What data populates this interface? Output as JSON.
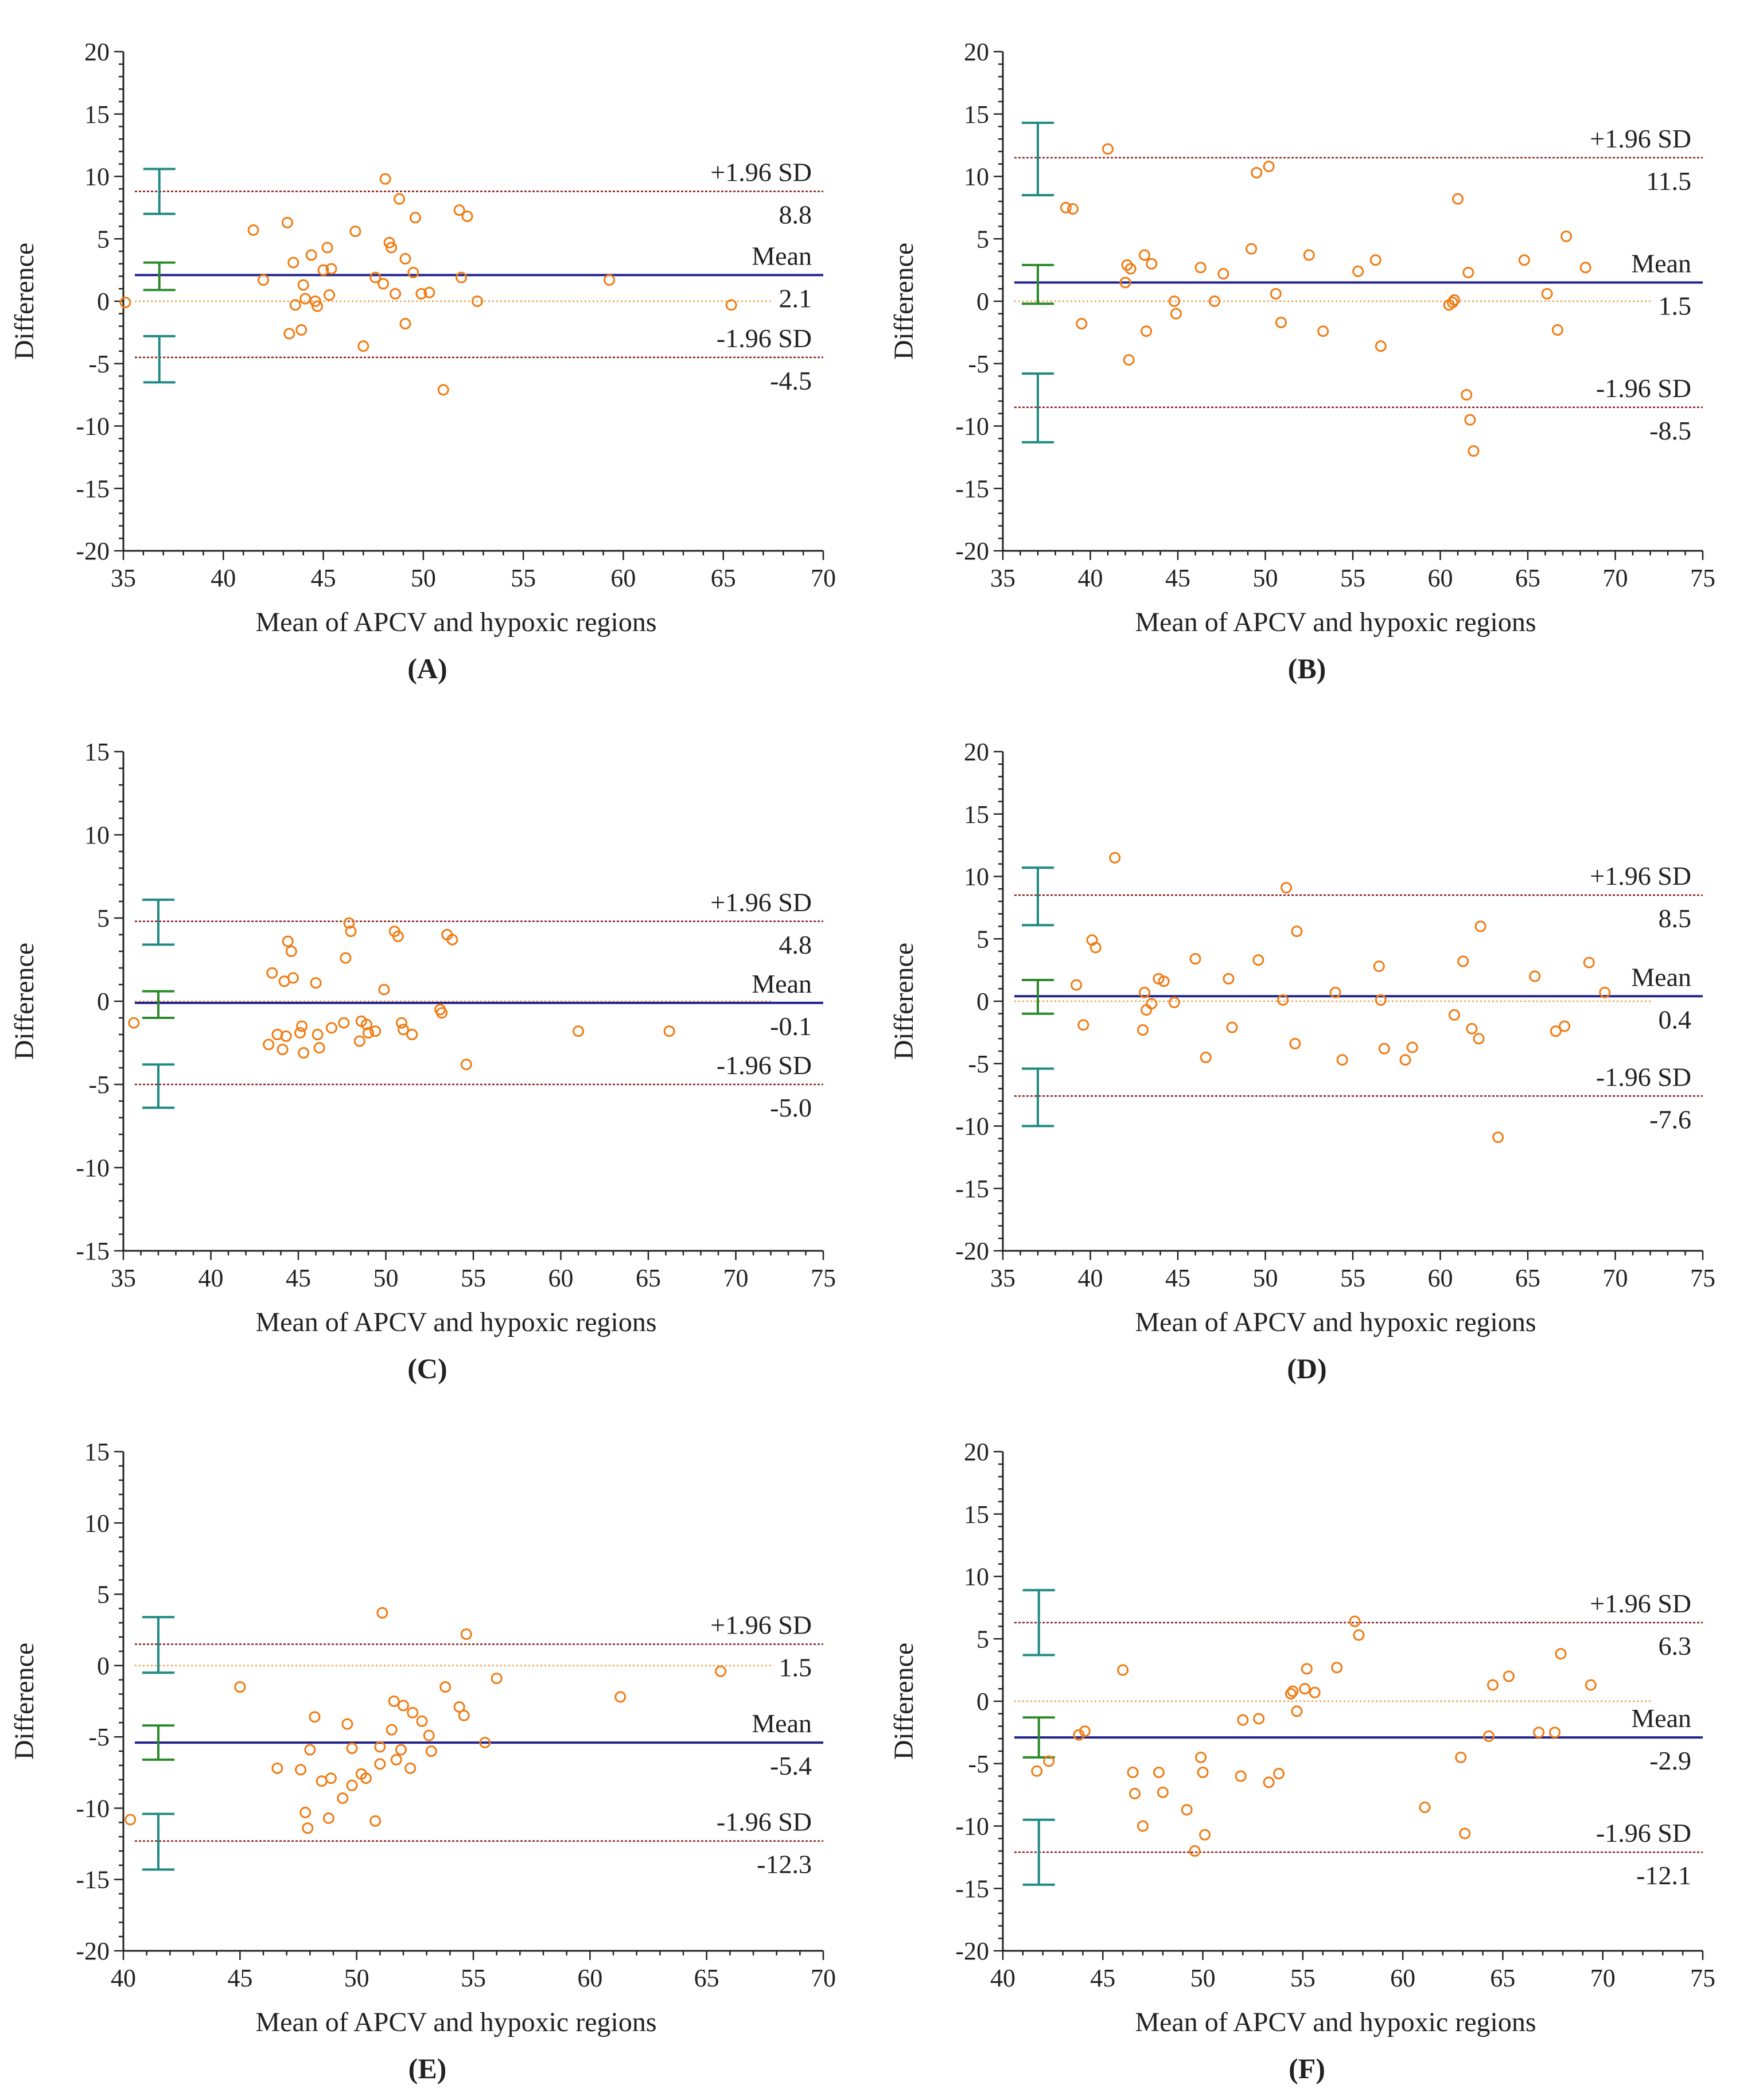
{
  "figure": {
    "colors": {
      "points": "#f07c14",
      "mean_line": "#23238c",
      "sd_line": "#8b1a1a",
      "zero_line": "#f0a050",
      "ci_outer": "#1e8a82",
      "ci_mean": "#2a8a2a",
      "axis": "#222222"
    }
  },
  "chart_data": [
    {
      "panel_label": "(A)",
      "type": "scatter",
      "xlabel": "Mean of APCV and hypoxic regions",
      "ylabel": "Difference",
      "xlim": [
        35,
        70
      ],
      "ylim": [
        -20,
        20
      ],
      "xticks": [
        "35",
        "40",
        "45",
        "50",
        "55",
        "60",
        "65",
        "70"
      ],
      "yticks": [
        "20",
        "15",
        "10",
        "5",
        "0",
        "-5",
        "-10",
        "-15",
        "-20"
      ],
      "mean": 2.1,
      "upper": 8.8,
      "lower": -4.5,
      "upper_label": "+1.96 SD",
      "upper_value": "8.8",
      "mean_label": "Mean",
      "mean_value": "2.1",
      "lower_label": "-1.96 SD",
      "lower_value": "-4.5",
      "ci_x": 36.8,
      "ci_upper": [
        7.0,
        10.6
      ],
      "ci_mean": [
        0.9,
        3.1
      ],
      "ci_lower": [
        -6.5,
        -2.8
      ],
      "points": [
        [
          35.1,
          -0.1
        ],
        [
          41.5,
          5.7
        ],
        [
          42.0,
          1.7
        ],
        [
          43.2,
          6.3
        ],
        [
          43.3,
          -2.6
        ],
        [
          43.5,
          3.1
        ],
        [
          43.6,
          -0.3
        ],
        [
          43.9,
          -2.3
        ],
        [
          44.0,
          1.3
        ],
        [
          44.1,
          0.2
        ],
        [
          44.4,
          3.7
        ],
        [
          44.6,
          0.0
        ],
        [
          44.7,
          -0.4
        ],
        [
          45.0,
          2.5
        ],
        [
          45.2,
          4.3
        ],
        [
          45.3,
          0.5
        ],
        [
          45.4,
          2.6
        ],
        [
          46.6,
          5.6
        ],
        [
          47.0,
          -3.6
        ],
        [
          47.6,
          1.9
        ],
        [
          48.0,
          1.4
        ],
        [
          48.1,
          9.8
        ],
        [
          48.3,
          4.7
        ],
        [
          48.4,
          4.3
        ],
        [
          48.6,
          0.6
        ],
        [
          48.8,
          8.2
        ],
        [
          49.1,
          3.4
        ],
        [
          49.1,
          -1.8
        ],
        [
          49.5,
          2.3
        ],
        [
          49.6,
          6.7
        ],
        [
          49.9,
          0.6
        ],
        [
          50.3,
          0.7
        ],
        [
          51.0,
          -7.1
        ],
        [
          51.8,
          7.3
        ],
        [
          51.9,
          1.9
        ],
        [
          52.2,
          6.8
        ],
        [
          52.7,
          0.0
        ],
        [
          59.3,
          1.7
        ],
        [
          65.4,
          -0.3
        ]
      ]
    },
    {
      "panel_label": "(B)",
      "type": "scatter",
      "xlabel": "Mean of APCV and hypoxic regions",
      "ylabel": "Difference",
      "xlim": [
        35,
        75
      ],
      "ylim": [
        -20,
        20
      ],
      "xticks": [
        "35",
        "40",
        "45",
        "50",
        "55",
        "60",
        "65",
        "70",
        "75"
      ],
      "yticks": [
        "20",
        "15",
        "10",
        "5",
        "0",
        "-5",
        "-10",
        "-15",
        "-20"
      ],
      "mean": 1.5,
      "upper": 11.5,
      "lower": -8.5,
      "upper_label": "+1.96 SD",
      "upper_value": "11.5",
      "mean_label": "Mean",
      "mean_value": "1.5",
      "lower_label": "-1.96 SD",
      "lower_value": "-8.5",
      "ci_x": 37.0,
      "ci_upper": [
        8.5,
        14.3
      ],
      "ci_mean": [
        -0.2,
        2.9
      ],
      "ci_lower": [
        -11.3,
        -5.8
      ],
      "points": [
        [
          38.6,
          7.5
        ],
        [
          39.0,
          7.4
        ],
        [
          39.5,
          -1.8
        ],
        [
          41.0,
          12.2
        ],
        [
          42.0,
          1.5
        ],
        [
          42.1,
          2.9
        ],
        [
          42.2,
          -4.7
        ],
        [
          42.3,
          2.6
        ],
        [
          43.1,
          3.7
        ],
        [
          43.2,
          -2.4
        ],
        [
          43.5,
          3.0
        ],
        [
          44.8,
          0.0
        ],
        [
          44.9,
          -1.0
        ],
        [
          46.3,
          2.7
        ],
        [
          47.1,
          0.0
        ],
        [
          47.6,
          2.2
        ],
        [
          49.2,
          4.2
        ],
        [
          49.5,
          10.3
        ],
        [
          50.2,
          10.8
        ],
        [
          50.6,
          0.6
        ],
        [
          50.9,
          -1.7
        ],
        [
          52.5,
          3.7
        ],
        [
          53.3,
          -2.4
        ],
        [
          55.3,
          2.4
        ],
        [
          56.3,
          3.3
        ],
        [
          56.6,
          -3.6
        ],
        [
          60.5,
          -0.3
        ],
        [
          60.7,
          -0.1
        ],
        [
          60.8,
          0.1
        ],
        [
          61.0,
          8.2
        ],
        [
          61.5,
          -7.5
        ],
        [
          61.6,
          2.3
        ],
        [
          61.7,
          -9.5
        ],
        [
          61.9,
          -12.0
        ],
        [
          64.8,
          3.3
        ],
        [
          66.1,
          0.6
        ],
        [
          66.7,
          -2.3
        ],
        [
          67.2,
          5.2
        ],
        [
          68.3,
          2.7
        ]
      ]
    },
    {
      "panel_label": "(C)",
      "type": "scatter",
      "xlabel": "Mean of APCV and hypoxic regions",
      "ylabel": "Difference",
      "xlim": [
        35,
        75
      ],
      "ylim": [
        -15,
        15
      ],
      "xticks": [
        "35",
        "40",
        "45",
        "50",
        "55",
        "60",
        "65",
        "70",
        "75"
      ],
      "yticks": [
        "15",
        "10",
        "5",
        "0",
        "-5",
        "-10",
        "-15"
      ],
      "mean": -0.1,
      "upper": 4.8,
      "lower": -5.0,
      "upper_label": "+1.96 SD",
      "upper_value": "4.8",
      "mean_label": "Mean",
      "mean_value": "-0.1",
      "lower_label": "-1.96 SD",
      "lower_value": "-5.0",
      "ci_x": 37.0,
      "ci_upper": [
        3.4,
        6.1
      ],
      "ci_mean": [
        -1.0,
        0.6
      ],
      "ci_lower": [
        -6.4,
        -3.8
      ],
      "points": [
        [
          35.6,
          -1.3
        ],
        [
          43.3,
          -2.6
        ],
        [
          43.5,
          1.7
        ],
        [
          43.8,
          -2.0
        ],
        [
          44.1,
          -2.9
        ],
        [
          44.2,
          1.2
        ],
        [
          44.3,
          -2.1
        ],
        [
          44.4,
          3.6
        ],
        [
          44.6,
          3.0
        ],
        [
          44.7,
          1.4
        ],
        [
          45.1,
          -1.9
        ],
        [
          45.2,
          -1.5
        ],
        [
          45.3,
          -3.1
        ],
        [
          46.0,
          1.1
        ],
        [
          46.1,
          -2.0
        ],
        [
          46.2,
          -2.8
        ],
        [
          46.9,
          -1.6
        ],
        [
          47.6,
          -1.3
        ],
        [
          47.7,
          2.6
        ],
        [
          47.9,
          4.7
        ],
        [
          48.0,
          4.2
        ],
        [
          48.5,
          -2.4
        ],
        [
          48.6,
          -1.2
        ],
        [
          48.9,
          -1.4
        ],
        [
          49.0,
          -1.9
        ],
        [
          49.4,
          -1.8
        ],
        [
          49.9,
          0.7
        ],
        [
          50.5,
          4.2
        ],
        [
          50.7,
          3.9
        ],
        [
          50.9,
          -1.3
        ],
        [
          51.0,
          -1.7
        ],
        [
          51.5,
          -2.0
        ],
        [
          53.1,
          -0.5
        ],
        [
          53.2,
          -0.7
        ],
        [
          53.5,
          4.0
        ],
        [
          53.8,
          3.7
        ],
        [
          54.6,
          -3.8
        ],
        [
          61.0,
          -1.8
        ],
        [
          66.2,
          -1.8
        ]
      ]
    },
    {
      "panel_label": "(D)",
      "type": "scatter",
      "xlabel": "Mean of APCV and hypoxic regions",
      "ylabel": "Difference",
      "xlim": [
        35,
        75
      ],
      "ylim": [
        -20,
        20
      ],
      "xticks": [
        "35",
        "40",
        "45",
        "50",
        "55",
        "60",
        "65",
        "70",
        "75"
      ],
      "yticks": [
        "20",
        "15",
        "10",
        "5",
        "0",
        "-5",
        "-10",
        "-15",
        "-20"
      ],
      "mean": 0.4,
      "upper": 8.5,
      "lower": -7.6,
      "upper_label": "+1.96 SD",
      "upper_value": "8.5",
      "mean_label": "Mean",
      "mean_value": "0.4",
      "lower_label": "-1.96 SD",
      "lower_value": "-7.6",
      "ci_x": 37.0,
      "ci_upper": [
        6.1,
        10.7
      ],
      "ci_mean": [
        -1.0,
        1.7
      ],
      "ci_lower": [
        -10.0,
        -5.4
      ],
      "points": [
        [
          39.2,
          1.3
        ],
        [
          39.6,
          -1.9
        ],
        [
          40.1,
          4.9
        ],
        [
          40.3,
          4.3
        ],
        [
          41.4,
          11.5
        ],
        [
          43.0,
          -2.3
        ],
        [
          43.1,
          0.7
        ],
        [
          43.2,
          -0.7
        ],
        [
          43.5,
          -0.2
        ],
        [
          43.9,
          1.8
        ],
        [
          44.2,
          1.6
        ],
        [
          44.8,
          -0.1
        ],
        [
          46.0,
          3.4
        ],
        [
          46.6,
          -4.5
        ],
        [
          47.9,
          1.8
        ],
        [
          48.1,
          -2.1
        ],
        [
          49.6,
          3.3
        ],
        [
          51.0,
          0.1
        ],
        [
          51.2,
          9.1
        ],
        [
          51.7,
          -3.4
        ],
        [
          51.8,
          5.6
        ],
        [
          54.0,
          0.7
        ],
        [
          54.4,
          -4.7
        ],
        [
          56.5,
          2.8
        ],
        [
          56.6,
          0.1
        ],
        [
          56.8,
          -3.8
        ],
        [
          58.0,
          -4.7
        ],
        [
          58.4,
          -3.7
        ],
        [
          60.8,
          -1.1
        ],
        [
          61.3,
          3.2
        ],
        [
          61.8,
          -2.2
        ],
        [
          62.2,
          -3.0
        ],
        [
          62.3,
          6.0
        ],
        [
          63.3,
          -10.9
        ],
        [
          65.4,
          2.0
        ],
        [
          66.6,
          -2.4
        ],
        [
          67.1,
          -2.0
        ],
        [
          68.5,
          3.1
        ],
        [
          69.4,
          0.7
        ]
      ]
    },
    {
      "panel_label": "(E)",
      "type": "scatter",
      "xlabel": "Mean of APCV and hypoxic regions",
      "ylabel": "Difference",
      "xlim": [
        40,
        70
      ],
      "ylim": [
        -20,
        15
      ],
      "xticks": [
        "40",
        "45",
        "50",
        "55",
        "60",
        "65",
        "70"
      ],
      "yticks": [
        "15",
        "10",
        "5",
        "0",
        "-5",
        "-10",
        "-15",
        "-20"
      ],
      "mean": -5.4,
      "upper": 1.5,
      "lower": -12.3,
      "upper_label": "+1.96 SD",
      "upper_value": "1.5",
      "mean_label": "Mean",
      "mean_value": "-5.4",
      "lower_label": "-1.96 SD",
      "lower_value": "-12.3",
      "ci_x": 41.5,
      "ci_upper": [
        -0.5,
        3.4
      ],
      "ci_mean": [
        -6.6,
        -4.2
      ],
      "ci_lower": [
        -14.3,
        -10.4
      ],
      "points": [
        [
          40.3,
          -10.8
        ],
        [
          45.0,
          -1.5
        ],
        [
          46.6,
          -7.2
        ],
        [
          47.6,
          -7.3
        ],
        [
          47.8,
          -10.3
        ],
        [
          47.9,
          -11.4
        ],
        [
          48.0,
          -5.9
        ],
        [
          48.2,
          -3.6
        ],
        [
          48.5,
          -8.1
        ],
        [
          48.8,
          -10.7
        ],
        [
          48.9,
          -7.9
        ],
        [
          49.4,
          -9.3
        ],
        [
          49.6,
          -4.1
        ],
        [
          49.8,
          -5.8
        ],
        [
          49.8,
          -8.4
        ],
        [
          50.2,
          -7.6
        ],
        [
          50.4,
          -7.9
        ],
        [
          50.8,
          -10.9
        ],
        [
          51.0,
          -5.7
        ],
        [
          51.0,
          -6.9
        ],
        [
          51.1,
          3.7
        ],
        [
          51.5,
          -4.5
        ],
        [
          51.6,
          -2.5
        ],
        [
          51.7,
          -6.6
        ],
        [
          51.9,
          -5.9
        ],
        [
          52.0,
          -2.8
        ],
        [
          52.3,
          -7.2
        ],
        [
          52.4,
          -3.3
        ],
        [
          52.8,
          -3.9
        ],
        [
          53.1,
          -4.9
        ],
        [
          53.2,
          -6.0
        ],
        [
          53.8,
          -1.5
        ],
        [
          54.4,
          -2.9
        ],
        [
          54.6,
          -3.5
        ],
        [
          54.7,
          2.2
        ],
        [
          55.5,
          -5.4
        ],
        [
          56.0,
          -0.9
        ],
        [
          61.3,
          -2.2
        ],
        [
          65.6,
          -0.4
        ]
      ]
    },
    {
      "panel_label": "(F)",
      "type": "scatter",
      "xlabel": "Mean of APCV and hypoxic regions",
      "ylabel": "Difference",
      "xlim": [
        40,
        75
      ],
      "ylim": [
        -20,
        20
      ],
      "xticks": [
        "40",
        "45",
        "50",
        "55",
        "60",
        "65",
        "70",
        "75"
      ],
      "yticks": [
        "20",
        "15",
        "10",
        "5",
        "0",
        "-5",
        "-10",
        "-15",
        "-20"
      ],
      "mean": -2.9,
      "upper": 6.3,
      "lower": -12.1,
      "upper_label": "+1.96 SD",
      "upper_value": "6.3",
      "mean_label": "Mean",
      "mean_value": "-2.9",
      "lower_label": "-1.96 SD",
      "lower_value": "-12.1",
      "ci_x": 41.8,
      "ci_upper": [
        3.7,
        8.9
      ],
      "ci_mean": [
        -4.5,
        -1.3
      ],
      "ci_lower": [
        -14.7,
        -9.5
      ],
      "points": [
        [
          41.7,
          -5.6
        ],
        [
          42.3,
          -4.8
        ],
        [
          43.8,
          -2.7
        ],
        [
          44.1,
          -2.4
        ],
        [
          46.0,
          2.5
        ],
        [
          46.5,
          -5.7
        ],
        [
          46.6,
          -7.4
        ],
        [
          47.0,
          -10.0
        ],
        [
          47.8,
          -5.7
        ],
        [
          48.0,
          -7.3
        ],
        [
          49.2,
          -8.7
        ],
        [
          49.6,
          -12.0
        ],
        [
          49.9,
          -4.5
        ],
        [
          50.0,
          -5.7
        ],
        [
          50.1,
          -10.7
        ],
        [
          51.9,
          -6.0
        ],
        [
          52.0,
          -1.5
        ],
        [
          52.8,
          -1.4
        ],
        [
          53.3,
          -6.5
        ],
        [
          53.8,
          -5.8
        ],
        [
          54.4,
          0.6
        ],
        [
          54.5,
          0.8
        ],
        [
          54.7,
          -0.8
        ],
        [
          55.1,
          1.0
        ],
        [
          55.2,
          2.6
        ],
        [
          55.6,
          0.7
        ],
        [
          56.7,
          2.7
        ],
        [
          57.6,
          6.4
        ],
        [
          57.8,
          5.3
        ],
        [
          61.1,
          -8.5
        ],
        [
          62.9,
          -4.5
        ],
        [
          63.1,
          -10.6
        ],
        [
          64.3,
          -2.8
        ],
        [
          64.5,
          1.3
        ],
        [
          65.3,
          2.0
        ],
        [
          66.8,
          -2.5
        ],
        [
          67.6,
          -2.5
        ],
        [
          67.9,
          3.8
        ],
        [
          69.4,
          1.3
        ]
      ]
    }
  ]
}
